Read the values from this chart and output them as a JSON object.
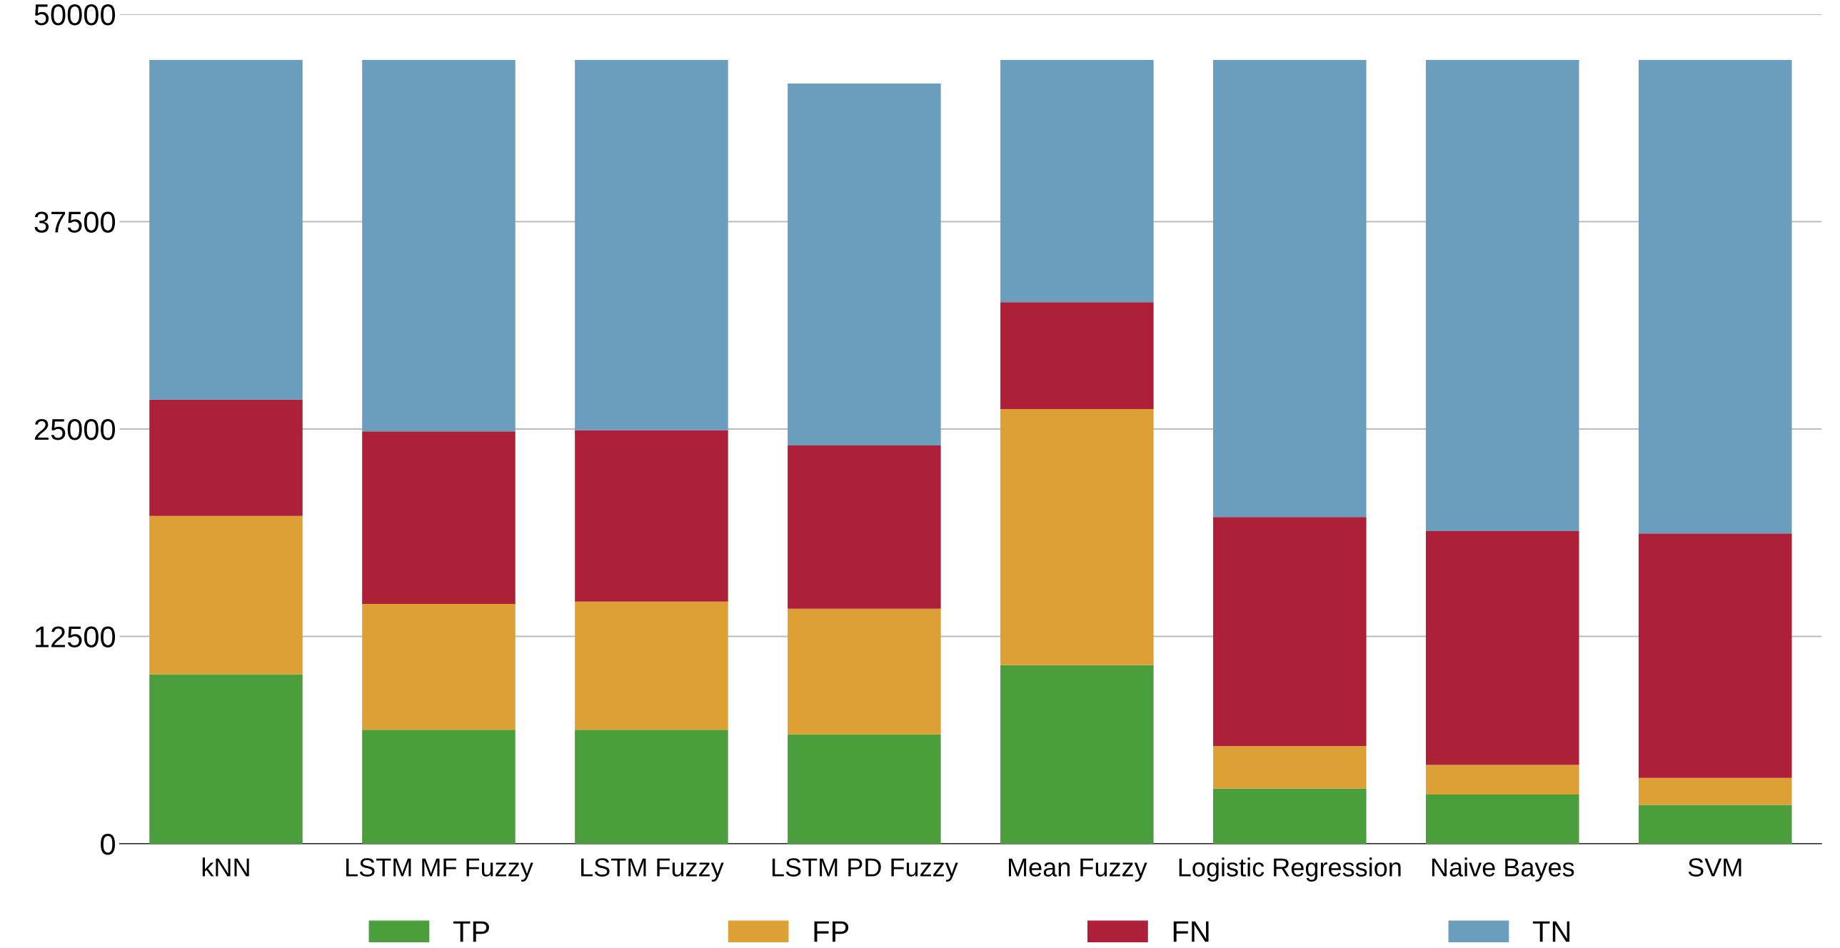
{
  "chart_data": {
    "type": "bar",
    "stacked": true,
    "categories": [
      "kNN",
      "LSTM MF Fuzzy",
      "LSTM Fuzzy",
      "LSTM PD Fuzzy",
      "Mean Fuzzy",
      "Logistic Regression",
      "Naive Bayes",
      "SVM"
    ],
    "series": [
      {
        "name": "TP",
        "color": "#4b9e3c",
        "values": [
          10200,
          6870,
          6870,
          6590,
          10760,
          3330,
          2970,
          2340
        ]
      },
      {
        "name": "FP",
        "color": "#dda034",
        "values": [
          9560,
          7580,
          7720,
          7570,
          15440,
          2550,
          1780,
          1630
        ]
      },
      {
        "name": "FN",
        "color": "#ae1f38",
        "values": [
          7010,
          10410,
          10340,
          9850,
          6450,
          13810,
          14090,
          14730
        ]
      },
      {
        "name": "TN",
        "color": "#6b9dbf",
        "values": [
          20470,
          22380,
          22310,
          21810,
          14590,
          27550,
          28400,
          28540
        ]
      }
    ],
    "ylim": [
      0,
      50000
    ],
    "yticks": [
      0,
      12500,
      25000,
      37500,
      50000
    ],
    "grid": "y",
    "legend": "bottom"
  }
}
